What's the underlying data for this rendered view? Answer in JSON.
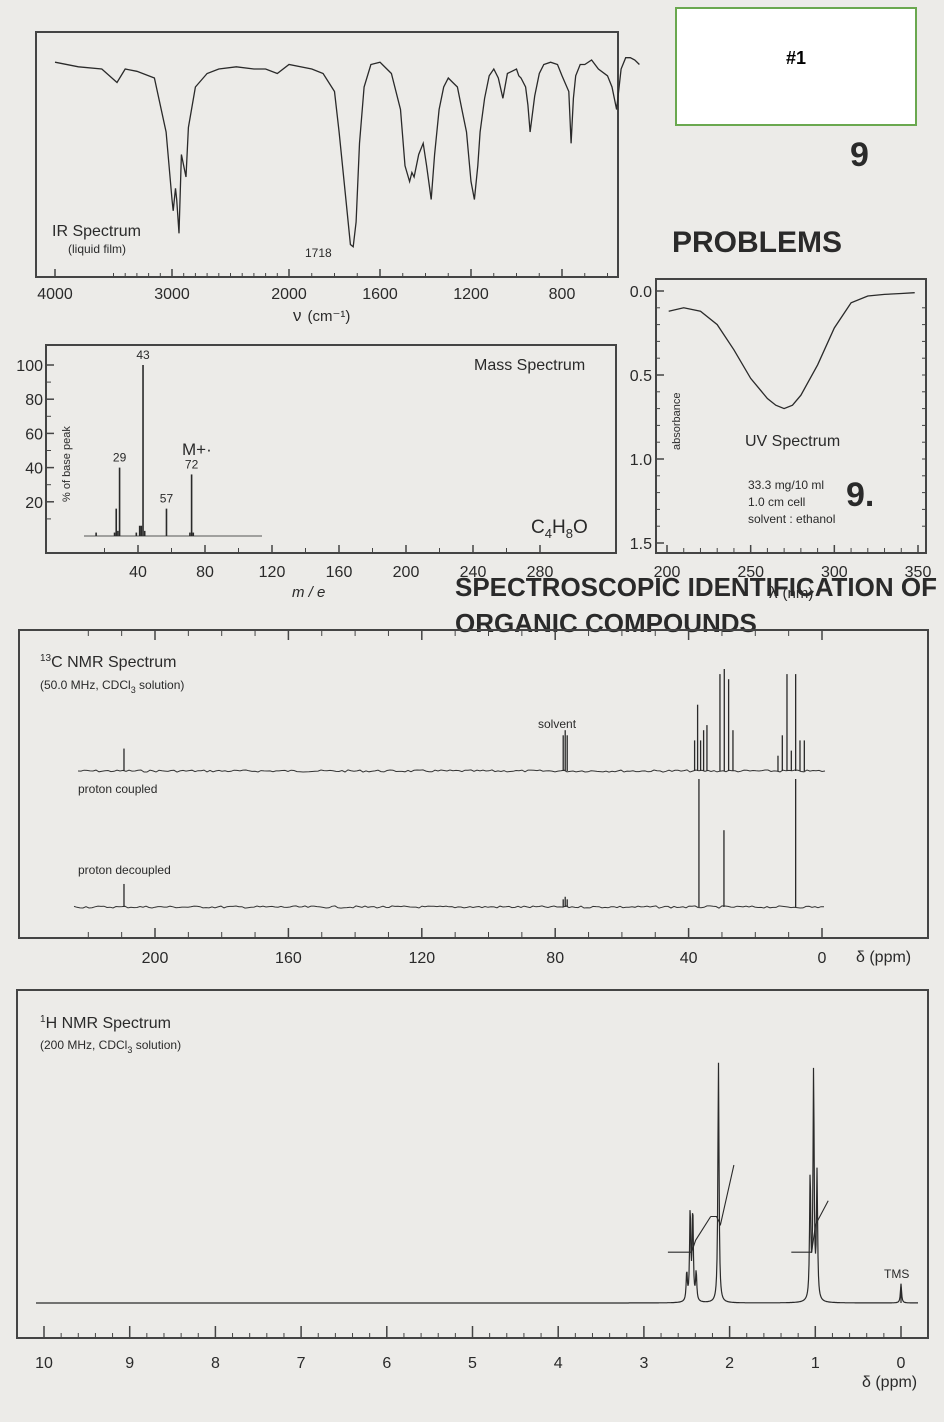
{
  "label_box": {
    "text": "#1",
    "border_color": "#6aa84f"
  },
  "background": {
    "chapter": "9",
    "heading": "PROBLEMS",
    "number": "9.",
    "line1": "SPECTROSCOPIC IDENTIFICATION OF",
    "line2": "ORGANIC COMPOUNDS"
  },
  "formula": {
    "base": "C",
    "sub1": "4",
    "mid": "H",
    "sub2": "8",
    "end": "O"
  },
  "colors": {
    "ink": "#2a2a2a",
    "paper": "#ecebe8",
    "frame": "#444444"
  },
  "chart_data": [
    {
      "type": "line",
      "title": "IR Spectrum",
      "subtitle": "(liquid film)",
      "xlabel_symbol": "ν",
      "xlabel_unit": "(cm⁻¹)",
      "x_ticks": [
        "4000",
        "3000",
        "2000",
        "1600",
        "1200",
        "800"
      ],
      "annotation": "1718",
      "xlim": [
        4000,
        450
      ],
      "axis_note": "x axis scale changes at 2000 cm-1",
      "y": "transmittance (unlabeled, peaks downward)",
      "series": [
        {
          "x": [
            4000,
            3800,
            3600,
            3470,
            3400,
            3300,
            3150,
            3050,
            3000,
            2990,
            2970,
            2960,
            2940,
            2920,
            2880,
            2860,
            2800,
            2700,
            2600,
            2450,
            2300,
            2200,
            2100,
            2000,
            1900,
            1850,
            1800,
            1780,
            1750,
            1730,
            1718,
            1705,
            1690,
            1670,
            1640,
            1600,
            1550,
            1510,
            1490,
            1470,
            1460,
            1450,
            1430,
            1410,
            1395,
            1375,
            1360,
            1340,
            1320,
            1300,
            1280,
            1260,
            1240,
            1220,
            1200,
            1185,
            1170,
            1160,
            1140,
            1120,
            1100,
            1080,
            1060,
            1040,
            1020,
            1000,
            990,
            980,
            960,
            950,
            940,
            920,
            900,
            880,
            850,
            820,
            800,
            770,
            760,
            750,
            740,
            720,
            700,
            670,
            640,
            600,
            580,
            560,
            540,
            520,
            500,
            480,
            460
          ],
          "t": [
            0.91,
            0.89,
            0.88,
            0.82,
            0.88,
            0.87,
            0.84,
            0.6,
            0.3,
            0.25,
            0.35,
            0.3,
            0.15,
            0.5,
            0.4,
            0.62,
            0.8,
            0.86,
            0.88,
            0.89,
            0.88,
            0.88,
            0.86,
            0.9,
            0.88,
            0.86,
            0.78,
            0.6,
            0.3,
            0.1,
            0.09,
            0.2,
            0.55,
            0.8,
            0.9,
            0.91,
            0.86,
            0.7,
            0.45,
            0.38,
            0.42,
            0.4,
            0.5,
            0.55,
            0.45,
            0.3,
            0.5,
            0.7,
            0.8,
            0.84,
            0.82,
            0.8,
            0.7,
            0.6,
            0.38,
            0.3,
            0.45,
            0.6,
            0.75,
            0.85,
            0.88,
            0.84,
            0.75,
            0.86,
            0.87,
            0.88,
            0.85,
            0.84,
            0.8,
            0.72,
            0.6,
            0.76,
            0.86,
            0.9,
            0.91,
            0.9,
            0.85,
            0.78,
            0.55,
            0.75,
            0.85,
            0.9,
            0.9,
            0.92,
            0.88,
            0.85,
            0.8,
            0.7,
            0.88,
            0.93,
            0.93,
            0.92,
            0.9
          ]
        }
      ]
    },
    {
      "type": "bar",
      "title": "Mass Spectrum",
      "ylabel": "% of base peak",
      "xlabel": "m / e",
      "ylim": [
        0,
        100
      ],
      "y_ticks": [
        20,
        40,
        60,
        80,
        100
      ],
      "xlim": [
        0,
        300
      ],
      "x_ticks": [
        40,
        80,
        120,
        160,
        200,
        240,
        280
      ],
      "molecular_ion": "M+·",
      "peak_labels": [
        {
          "mz": 43,
          "text": "43"
        },
        {
          "mz": 29,
          "text": "29"
        },
        {
          "mz": 72,
          "text": "72"
        },
        {
          "mz": 57,
          "text": "57"
        }
      ],
      "mz": [
        15,
        26,
        27,
        28,
        29,
        39,
        41,
        42,
        43,
        44,
        57,
        71,
        72,
        73
      ],
      "values": [
        2,
        2,
        16,
        3,
        40,
        2,
        6,
        6,
        100,
        3,
        16,
        2,
        36,
        2
      ]
    },
    {
      "type": "line",
      "title": "UV Spectrum",
      "details": [
        "33.3 mg/10 ml",
        "1.0 cm cell",
        "solvent : ethanol"
      ],
      "ylabel": "absorbance",
      "xlabel_symbol": "λ",
      "xlabel_unit": "(nm)",
      "xlim": [
        200,
        350
      ],
      "ylim": [
        0,
        1.5
      ],
      "y_inverted": true,
      "x_ticks": [
        200,
        250,
        300,
        350
      ],
      "y_ticks": [
        "0.0",
        "0.5",
        "1.0",
        "1.5"
      ],
      "series": [
        {
          "x": [
            201,
            210,
            220,
            230,
            240,
            250,
            260,
            265,
            270,
            275,
            280,
            290,
            300,
            310,
            320,
            330,
            340,
            348
          ],
          "y": [
            0.12,
            0.1,
            0.12,
            0.2,
            0.35,
            0.52,
            0.64,
            0.68,
            0.7,
            0.68,
            0.62,
            0.44,
            0.22,
            0.07,
            0.03,
            0.02,
            0.015,
            0.01
          ]
        }
      ]
    },
    {
      "type": "scatter",
      "title": "13C NMR Spectrum",
      "title_sup": "13",
      "title_rest": "C NMR Spectrum",
      "subtitle": "(50.0 MHz, CDCl",
      "subtitle_sub": "3",
      "subtitle_end": " solution)",
      "xlabel": "δ (ppm)",
      "xlim": [
        220,
        0
      ],
      "x_ticks": [
        200,
        160,
        120,
        80,
        40,
        0
      ],
      "annotations": [
        "solvent",
        "proton coupled",
        "proton decoupled"
      ],
      "coupled_peaks": {
        "ppm": [
          209.3,
          77.6,
          77.0,
          76.4,
          38.2,
          37.3,
          36.4,
          35.5,
          34.5,
          30.6,
          29.3,
          28.0,
          26.7,
          13.2,
          11.9,
          10.5,
          9.2,
          7.9,
          6.6,
          5.3
        ],
        "height": [
          0.22,
          0.35,
          0.4,
          0.35,
          0.3,
          0.65,
          0.3,
          0.4,
          0.45,
          0.95,
          1.0,
          0.9,
          0.4,
          0.15,
          0.35,
          0.95,
          0.2,
          0.95,
          0.3,
          0.3
        ]
      },
      "decoupled_peaks": {
        "ppm": [
          209.3,
          77.6,
          77.0,
          76.4,
          36.9,
          29.4,
          7.9
        ],
        "height": [
          0.18,
          0.06,
          0.08,
          0.06,
          1.0,
          0.6,
          1.0
        ]
      }
    },
    {
      "type": "line",
      "title": "1H NMR Spectrum",
      "title_sup": "1",
      "title_rest": "H NMR Spectrum",
      "subtitle": "(200 MHz, CDCl",
      "subtitle_sub": "3",
      "subtitle_end": " solution)",
      "xlabel": "δ (ppm)",
      "xlim": [
        10,
        0
      ],
      "x_ticks": [
        10,
        9,
        8,
        7,
        6,
        5,
        4,
        3,
        2,
        1,
        0
      ],
      "annotation": "TMS",
      "peaks": {
        "ppm": [
          2.5,
          2.46,
          2.43,
          2.39,
          2.13,
          1.06,
          1.02,
          0.98,
          0.0
        ],
        "height": [
          0.12,
          0.38,
          0.38,
          0.12,
          1.0,
          0.52,
          0.95,
          0.52,
          0.08
        ]
      },
      "integrals": [
        {
          "from": 2.72,
          "to": 2.22,
          "steps": [
            [
              2.5,
              0.12
            ],
            [
              2.42,
              0.18
            ]
          ],
          "start": 0.12,
          "end": 0.3
        },
        {
          "from": 2.22,
          "to": 1.95,
          "steps": [
            [
              2.13,
              0.26
            ]
          ],
          "start": 0.3,
          "end": 0.56
        },
        {
          "from": 1.28,
          "to": 0.85,
          "steps": [
            [
              1.02,
              0.26
            ]
          ],
          "start": 0.12,
          "end": 0.38
        }
      ]
    }
  ]
}
